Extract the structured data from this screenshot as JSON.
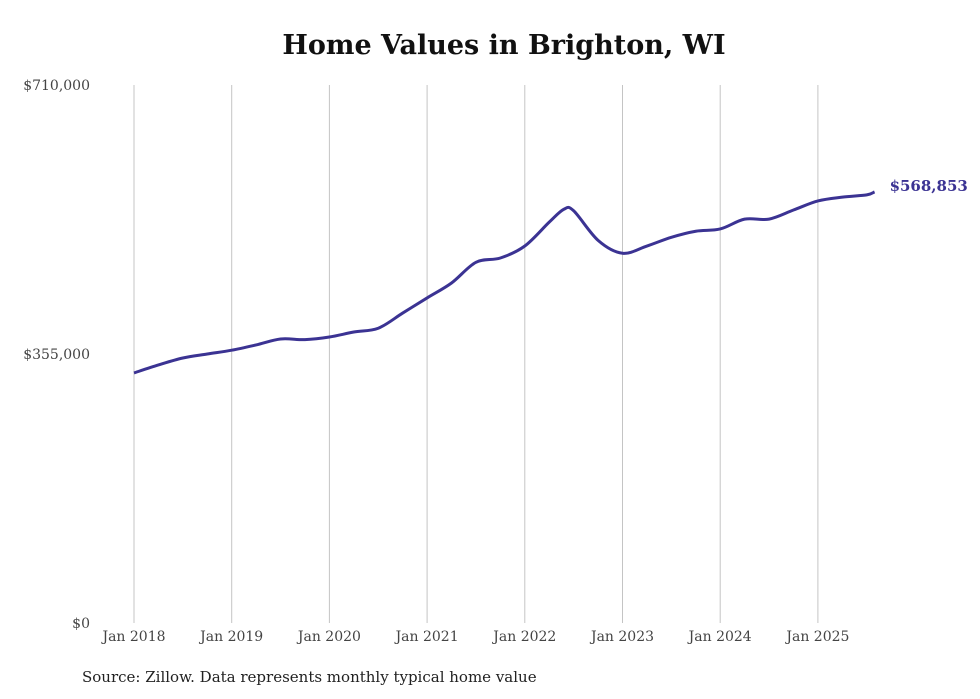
{
  "chart_data": {
    "type": "line",
    "title": "Home Values in Brighton, WI",
    "source": "Source: Zillow. Data represents monthly typical home value",
    "xlabel": "",
    "ylabel": "",
    "ylim": [
      0,
      710000
    ],
    "y_ticks": [
      {
        "value": 0,
        "label": "$0"
      },
      {
        "value": 355000,
        "label": "$355,000"
      },
      {
        "value": 710000,
        "label": "$710,000"
      }
    ],
    "x_ticks": [
      {
        "year": 2018,
        "label": "Jan 2018"
      },
      {
        "year": 2019,
        "label": "Jan 2019"
      },
      {
        "year": 2020,
        "label": "Jan 2020"
      },
      {
        "year": 2021,
        "label": "Jan 2021"
      },
      {
        "year": 2022,
        "label": "Jan 2022"
      },
      {
        "year": 2023,
        "label": "Jan 2023"
      },
      {
        "year": 2024,
        "label": "Jan 2024"
      },
      {
        "year": 2025,
        "label": "Jan 2025"
      }
    ],
    "grid": "vertical",
    "end_label": "$568,853",
    "color": "#3b3393",
    "series": [
      {
        "name": "Typical home value",
        "x": [
          2018.0,
          2018.25,
          2018.5,
          2018.75,
          2019.0,
          2019.25,
          2019.5,
          2019.75,
          2020.0,
          2020.25,
          2020.5,
          2020.75,
          2021.0,
          2021.25,
          2021.5,
          2021.75,
          2022.0,
          2022.25,
          2022.4,
          2022.5,
          2022.75,
          2023.0,
          2023.25,
          2023.5,
          2023.75,
          2024.0,
          2024.25,
          2024.5,
          2024.75,
          2025.0,
          2025.25,
          2025.5,
          2025.58
        ],
        "values": [
          330000,
          340500,
          349700,
          355000,
          360000,
          367000,
          374800,
          374000,
          377400,
          384000,
          389000,
          409000,
          429000,
          448700,
          476000,
          481700,
          497500,
          529000,
          546000,
          544000,
          505000,
          488000,
          497500,
          509000,
          517000,
          520000,
          533000,
          533000,
          545000,
          557000,
          562000,
          565000,
          568853
        ]
      }
    ]
  }
}
